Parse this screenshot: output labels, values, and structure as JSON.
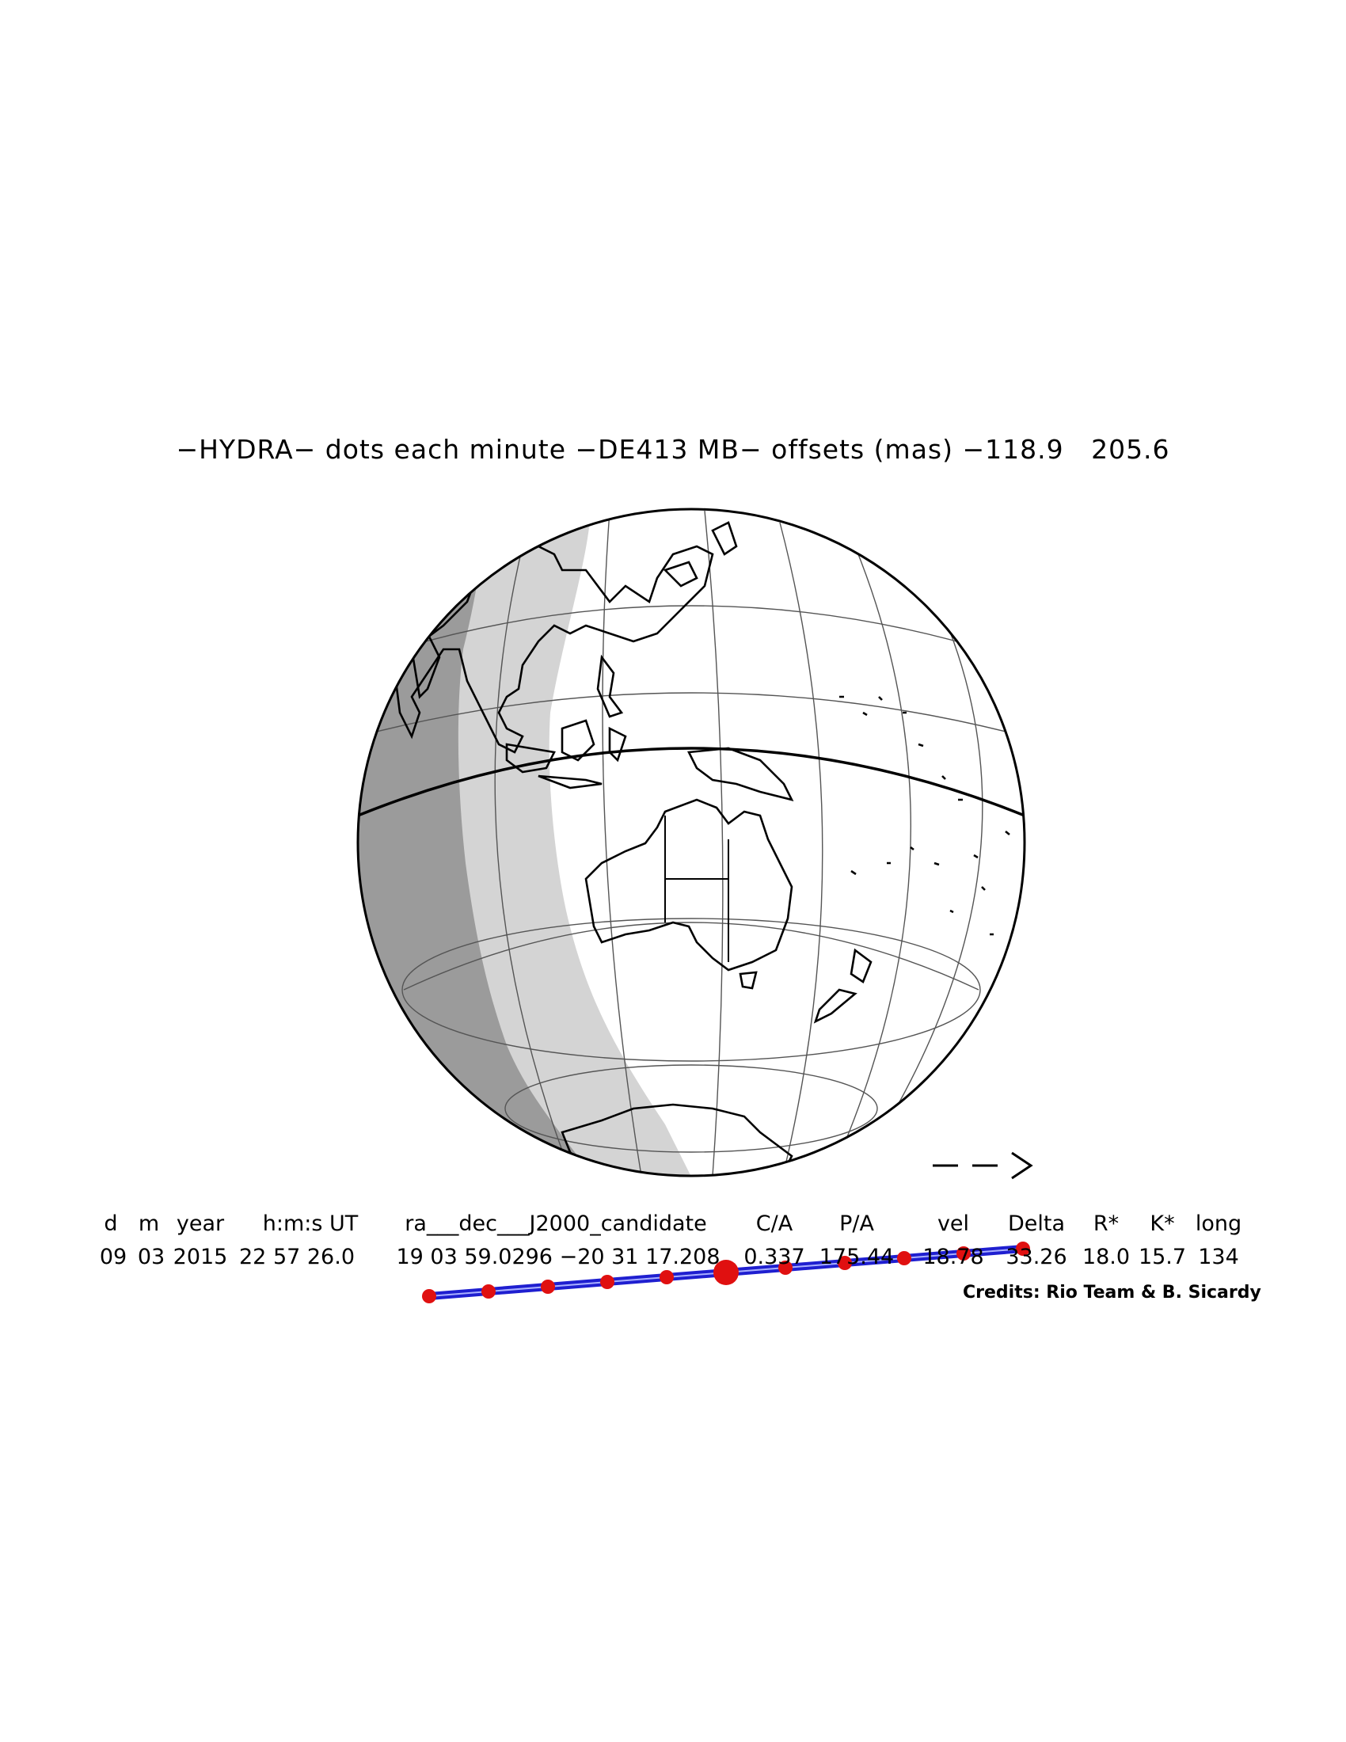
{
  "title": "−HYDRA− dots each minute −DE413 MB− offsets (mas) −118.9   205.6",
  "table": {
    "headers": [
      "d",
      "m",
      "year",
      "h:m:s UT",
      "ra___dec___J2000_candidate",
      "C/A",
      "P/A",
      "vel",
      "Delta",
      "R*",
      "K*",
      "long"
    ],
    "values": [
      "09",
      "03",
      "2015",
      "22 57 26.0",
      "19 03 59.0296 −20 31 17.208",
      "0.337",
      "175.44",
      "18.78",
      "33.26",
      "18.0",
      "15.7",
      "134"
    ]
  },
  "credits": "Credits: Rio Team & B. Sicardy",
  "direction_arrow": "— — >",
  "colors": {
    "night": "#9b9b9b",
    "twilight": "#d4d4d4",
    "day": "#ffffff",
    "outline": "#000000",
    "shadow_path": "#1f1fd0",
    "path_dots": "#e01010"
  }
}
